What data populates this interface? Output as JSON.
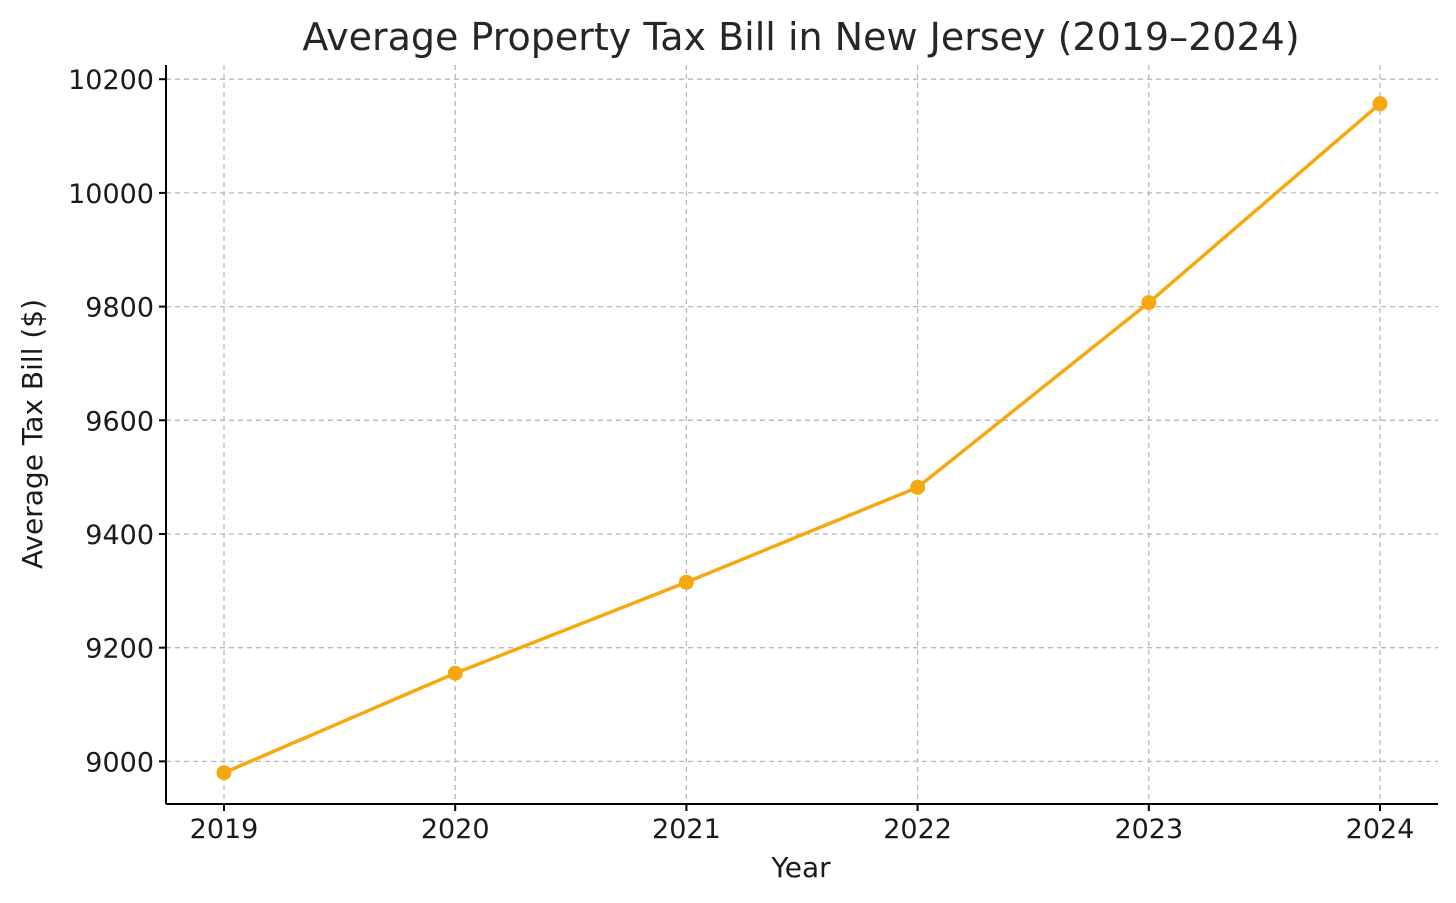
{
  "chart_data": {
    "type": "line",
    "title": "Average Property Tax Bill in New Jersey (2019–2024)",
    "xlabel": "Year",
    "ylabel": "Average Tax Bill ($)",
    "categories": [
      "2019",
      "2020",
      "2021",
      "2022",
      "2023",
      "2024"
    ],
    "series": [
      {
        "values": [
          8980,
          9155,
          9315,
          9482,
          9807,
          10157
        ]
      }
    ],
    "yticks": [
      9000,
      9200,
      9400,
      9600,
      9800,
      10000,
      10200
    ],
    "ylim": [
      8925,
      10225
    ],
    "grid": true,
    "legend": "none",
    "colors": {
      "line": "#f5a80f",
      "grid": "#b8b8b8",
      "axis": "#000000"
    }
  }
}
